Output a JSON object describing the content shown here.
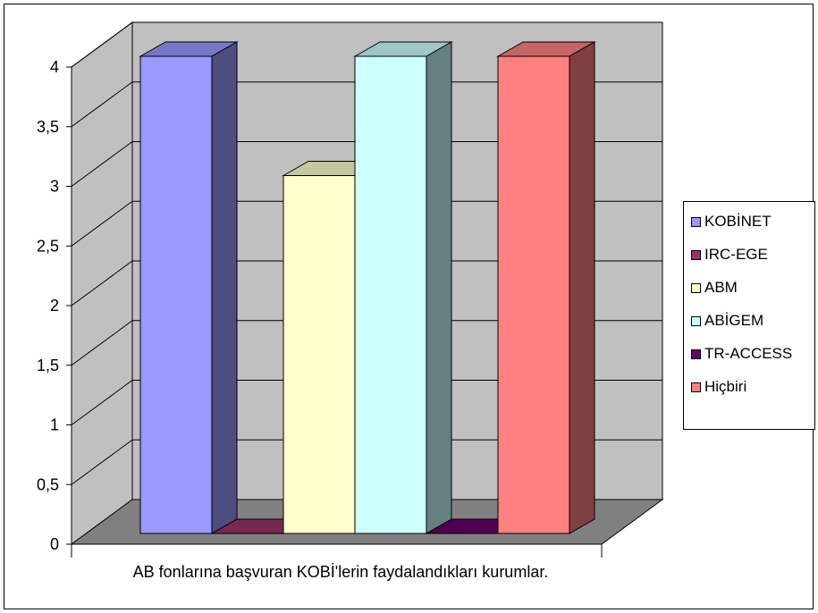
{
  "chart_data": {
    "type": "bar",
    "style": "3d-clustered-column",
    "xlabel": "AB fonlarına başvuran KOBİ'lerin faydalandıkları kurumlar.",
    "ylabel": "",
    "ylim": [
      0,
      4
    ],
    "ytick_labels": [
      "0",
      "0,5",
      "1",
      "1,5",
      "2",
      "2,5",
      "3",
      "3,5",
      "4"
    ],
    "grid": true,
    "legend_position": "right",
    "series": [
      {
        "name": "KOBİNET",
        "values": [
          4
        ],
        "color": "#9999FF"
      },
      {
        "name": "IRC-EGE",
        "values": [
          0
        ],
        "color": "#993366"
      },
      {
        "name": "ABM",
        "values": [
          3
        ],
        "color": "#FFFFCC"
      },
      {
        "name": "ABİGEM",
        "values": [
          4
        ],
        "color": "#CCFFFF"
      },
      {
        "name": "TR-ACCESS",
        "values": [
          0
        ],
        "color": "#660066"
      },
      {
        "name": "Hiçbiri",
        "values": [
          4
        ],
        "color": "#FF8080"
      }
    ],
    "colors": {
      "wall": "#C0C0C0",
      "floor": "#808080",
      "grid": "#000000"
    }
  }
}
